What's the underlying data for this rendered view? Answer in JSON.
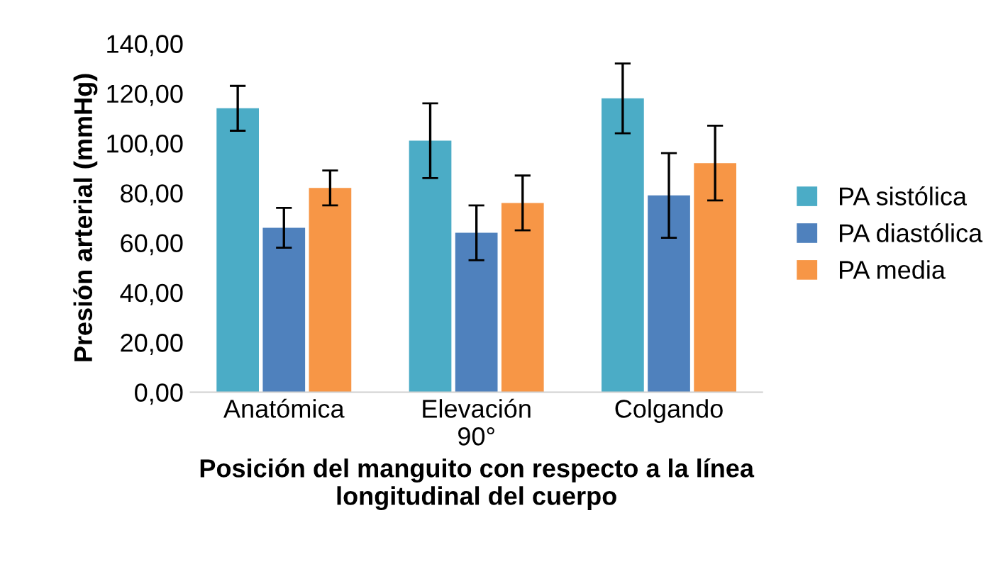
{
  "chart_data": {
    "type": "bar",
    "categories": [
      "Anatómica",
      "Elevación\n90°",
      "Colgando"
    ],
    "series": [
      {
        "name": "PA sistólica",
        "color": "#4bacc6",
        "values": [
          114,
          101,
          118
        ],
        "errors": [
          9,
          15,
          14
        ]
      },
      {
        "name": "PA diastólica",
        "color": "#4f81bd",
        "values": [
          66,
          64,
          79
        ],
        "errors": [
          8,
          11,
          17
        ]
      },
      {
        "name": "PA media",
        "color": "#f79646",
        "values": [
          82,
          76,
          92
        ],
        "errors": [
          7,
          11,
          15
        ]
      }
    ],
    "xlabel": "Posición del manguito con respecto a la línea\nlongitudinal del cuerpo",
    "ylabel": "Presión arterial (mmHg)",
    "ylim": [
      0,
      140
    ],
    "yticks": [
      {
        "value": 0,
        "label": "0,00"
      },
      {
        "value": 20,
        "label": "20,00"
      },
      {
        "value": 40,
        "label": "40,00"
      },
      {
        "value": 60,
        "label": "60,00"
      },
      {
        "value": 80,
        "label": "80,00"
      },
      {
        "value": 100,
        "label": "100,00"
      },
      {
        "value": 120,
        "label": "120,00"
      },
      {
        "value": 140,
        "label": "140,00"
      }
    ],
    "legend": "right",
    "grid": false
  }
}
